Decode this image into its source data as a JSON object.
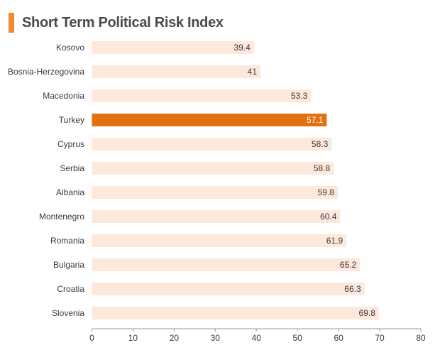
{
  "title": "Short Term Political Risk Index",
  "colors": {
    "accent": "#f28a2e",
    "bar": "#fde8dc",
    "highlight": "#e3710f",
    "text": "#3a3a3a",
    "highlight_text": "#ffffff",
    "axis": "#9a9a9a"
  },
  "chart_data": {
    "type": "bar",
    "orientation": "horizontal",
    "title": "Short Term Political Risk Index",
    "xlabel": "",
    "ylabel": "",
    "categories": [
      "Kosovo",
      "Bosnia-Herzegovina",
      "Macedonia",
      "Turkey",
      "Cyprus",
      "Serbia",
      "Albania",
      "Montenegro",
      "Romania",
      "Bulgaria",
      "Croatia",
      "Slovenia"
    ],
    "values": [
      39.4,
      41,
      53.3,
      57.1,
      58.3,
      58.8,
      59.8,
      60.4,
      61.9,
      65.2,
      66.3,
      69.8
    ],
    "value_labels": [
      "39.4",
      "41",
      "53.3",
      "57.1",
      "58.3",
      "58.8",
      "59.8",
      "60.4",
      "61.9",
      "65.2",
      "66.3",
      "69.8"
    ],
    "highlight": "Turkey",
    "xlim": [
      0,
      80
    ],
    "xticks": [
      "0",
      "10",
      "20",
      "30",
      "40",
      "50",
      "60",
      "70",
      "80"
    ],
    "grid": false,
    "legend": "none"
  }
}
